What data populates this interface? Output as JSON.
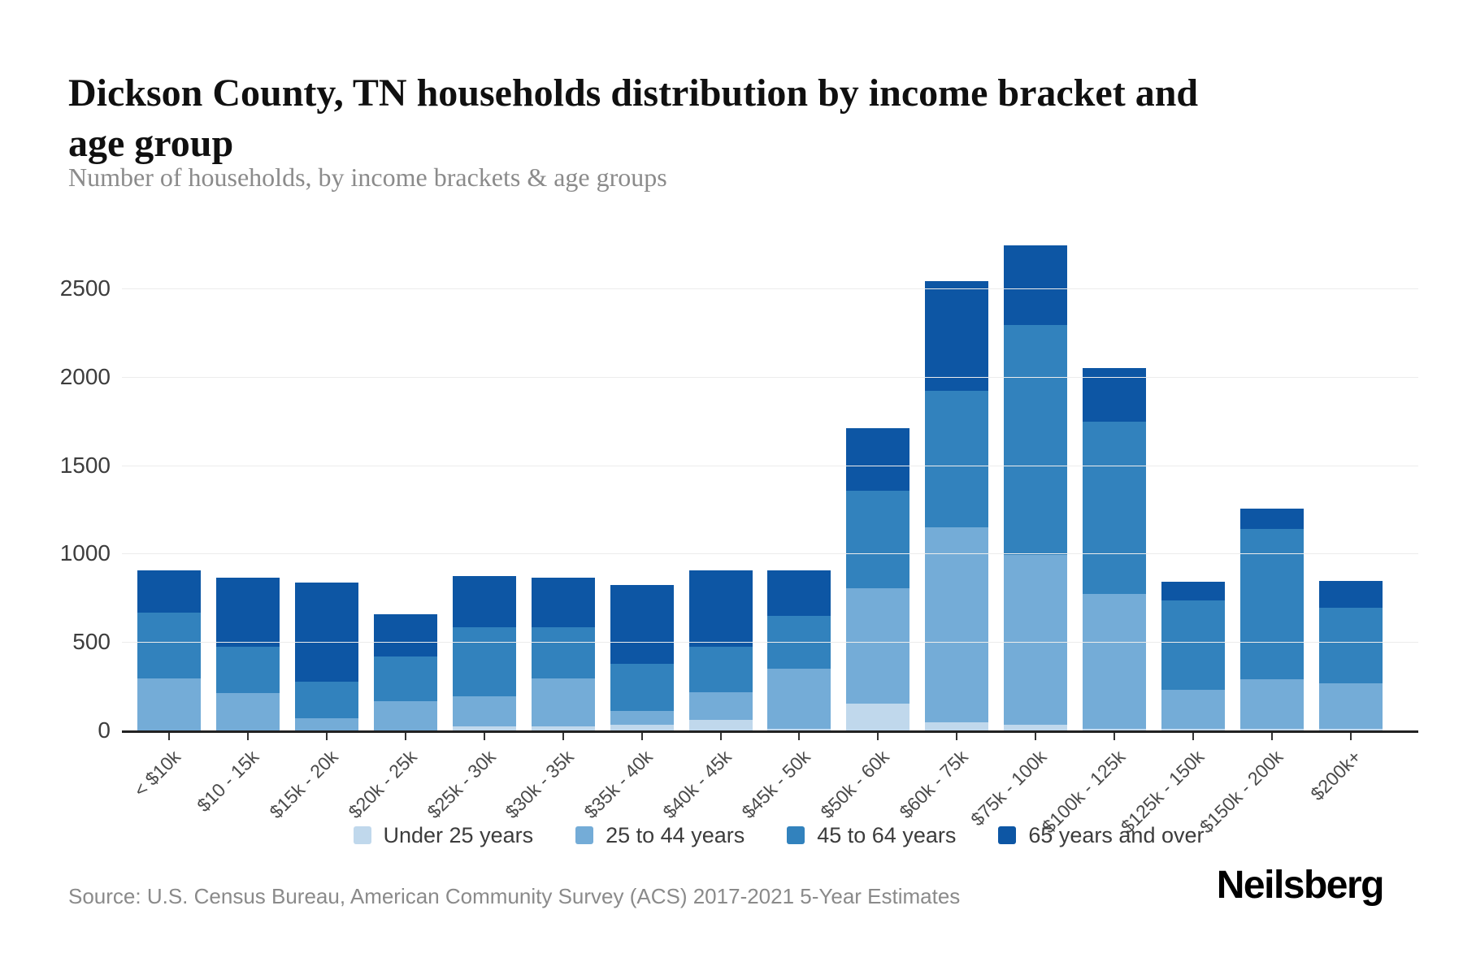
{
  "header": {
    "title_line1": "Dickson County, TN households distribution by income bracket and",
    "title_line2": "age group",
    "subtitle": "Number of households, by income brackets & age groups"
  },
  "footer": {
    "source": "Source: U.S. Census Bureau, American Community Survey (ACS) 2017-2021 5-Year Estimates",
    "brand": "Neilsberg"
  },
  "colors": {
    "background": "#ffffff",
    "gridline": "#ececec",
    "axis_line": "#222222",
    "axis_text": "#3d3d3d",
    "title_text": "#101010",
    "subtitle_text": "#8b8b8b",
    "under_25": "#c0d8ec",
    "age_25_44": "#74acd7",
    "age_45_64": "#3282bd",
    "age_65_over": "#0d56a4"
  },
  "chart_data": {
    "type": "bar",
    "stacked": true,
    "title": "Dickson County, TN households distribution by income bracket and age group",
    "subtitle": "Number of households, by income brackets & age groups",
    "xlabel": "",
    "ylabel": "",
    "grid": true,
    "legend_position": "bottom",
    "ylim": [
      0,
      2800
    ],
    "yticks": [
      0,
      500,
      1000,
      1500,
      2000,
      2500
    ],
    "categories": [
      "< $10k",
      "$10 - 15k",
      "$15k - 20k",
      "$20k - 25k",
      "$25k - 30k",
      "$30k - 35k",
      "$35k - 40k",
      "$40k - 45k",
      "$45k - 50k",
      "$50k - 60k",
      "$60k - 75k",
      "$75k - 100k",
      "$100k - 125k",
      "$125k - 150k",
      "$150k - 200k",
      "$200k+"
    ],
    "series": [
      {
        "name": "Under 25 years",
        "color": "#c0d8ec",
        "values": [
          0,
          0,
          0,
          0,
          25,
          25,
          30,
          60,
          10,
          150,
          45,
          30,
          10,
          10,
          10,
          10
        ]
      },
      {
        "name": "25 to 44 years",
        "color": "#74acd7",
        "values": [
          295,
          210,
          70,
          165,
          170,
          270,
          80,
          155,
          340,
          655,
          1105,
          965,
          760,
          220,
          280,
          255
        ]
      },
      {
        "name": "45 to 64 years",
        "color": "#3282bd",
        "values": [
          370,
          265,
          205,
          255,
          390,
          290,
          265,
          260,
          300,
          550,
          770,
          1300,
          975,
          505,
          850,
          430
        ]
      },
      {
        "name": "65 years and over",
        "color": "#0d56a4",
        "values": [
          240,
          390,
          560,
          235,
          290,
          280,
          450,
          430,
          255,
          355,
          620,
          450,
          305,
          105,
          115,
          150
        ]
      }
    ]
  }
}
